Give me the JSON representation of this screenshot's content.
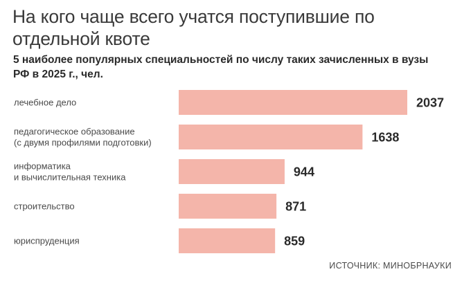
{
  "title": "На кого чаще всего учатся поступившие по отдельной квоте",
  "subtitle": "5 наиболее популярных специальностей по числу таких зачисленных в вузы РФ в 2025 г., чел.",
  "source": "ИСТОЧНИК: МИНОБРНАУКИ",
  "colors": {
    "bar": "#f4b5aa"
  },
  "chart_data": {
    "type": "bar",
    "orientation": "horizontal",
    "title": "На кого чаще всего учатся поступившие по отдельной квоте",
    "subtitle": "5 наиболее популярных специальностей по числу таких зачисленных в вузы РФ в 2025 г., чел.",
    "categories": [
      [
        "лечебное дело"
      ],
      [
        "педагогическое образование",
        "(с двумя профилями подготовки)"
      ],
      [
        "информатика",
        "и вычислительная техника"
      ],
      [
        "строительство"
      ],
      [
        "юриспруденция"
      ]
    ],
    "values": [
      2037,
      1638,
      944,
      871,
      859
    ],
    "xlim": [
      0,
      2037
    ],
    "grid": false,
    "legend": "none"
  }
}
